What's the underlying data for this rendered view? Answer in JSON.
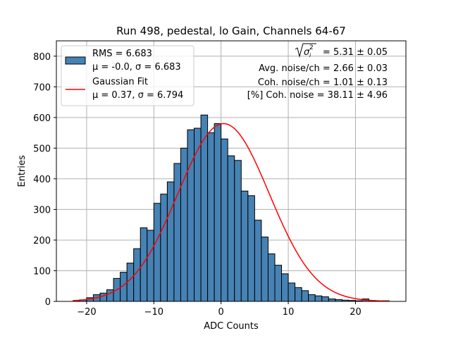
{
  "chart_data": {
    "type": "bar",
    "title": "Run 498, pedestal, lo Gain, Channels 64-67",
    "xlabel": "ADC Counts",
    "ylabel": "Entries",
    "xlim": [
      -24.5,
      27.5
    ],
    "ylim": [
      0,
      850
    ],
    "xticks": [
      -20,
      -10,
      0,
      10,
      20
    ],
    "yticks": [
      0,
      100,
      200,
      300,
      400,
      500,
      600,
      700,
      800
    ],
    "grid": true,
    "legend_position": "top-left",
    "bar_color": "#4682b4",
    "fit_color": "#ff0000",
    "bins": {
      "start": -22,
      "width": 1,
      "counts": [
        3,
        5,
        12,
        22,
        27,
        38,
        75,
        95,
        125,
        172,
        240,
        232,
        320,
        350,
        390,
        450,
        500,
        560,
        565,
        608,
        550,
        580,
        530,
        475,
        460,
        360,
        345,
        265,
        210,
        155,
        118,
        90,
        60,
        45,
        35,
        22,
        18,
        15,
        8,
        6,
        4,
        3,
        2,
        8,
        3,
        1,
        2
      ]
    },
    "fit": {
      "mu": 0.37,
      "sigma": 6.794,
      "amplitude": 580,
      "x_range": [
        -22,
        25
      ]
    },
    "legend": [
      {
        "type": "patch",
        "line1": "RMS = 6.683",
        "line2": "μ = -0.0, σ = 6.683"
      },
      {
        "type": "line",
        "line1": "Gaussian Fit",
        "line2": "μ = 0.37, σ = 6.794"
      }
    ],
    "annotations": {
      "line1_value": "= 5.31 ± 0.05",
      "line2": "Avg. noise/ch = 2.66 ± 0.03",
      "line3": "Coh. noise/ch = 1.01 ± 0.13",
      "line4": "[%] Coh. noise = 38.11 ± 4.96"
    }
  }
}
